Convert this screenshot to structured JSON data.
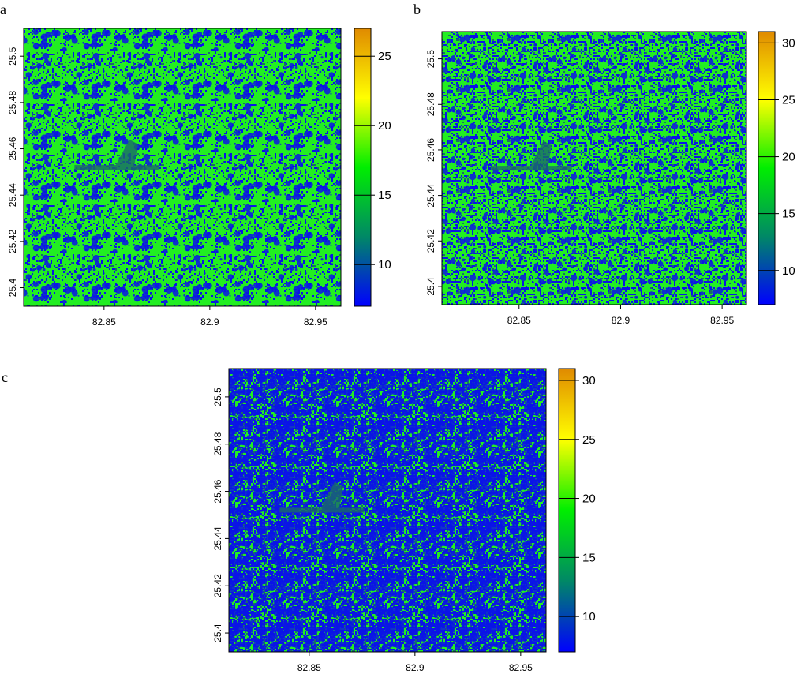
{
  "chart_data": [
    {
      "type": "heatmap",
      "panel_label": "a",
      "x_ticks": [
        82.85,
        82.9,
        82.95
      ],
      "x_tick_labels": [
        "82.85",
        "82.9",
        "82.95"
      ],
      "y_ticks": [
        25.4,
        25.42,
        25.44,
        25.46,
        25.48,
        25.5
      ],
      "y_tick_labels": [
        "25.4",
        "25.42",
        "25.44",
        "25.46",
        "25.48",
        "25.5"
      ],
      "xlim": [
        82.812,
        82.962
      ],
      "ylim": [
        25.392,
        25.512
      ],
      "colorbar": {
        "range": [
          7,
          27
        ],
        "ticks": [
          10,
          15,
          20,
          25
        ],
        "tick_labels": [
          "10",
          "15",
          "20",
          "25"
        ]
      },
      "green_fraction": 0.82,
      "grid": false
    },
    {
      "type": "heatmap",
      "panel_label": "b",
      "x_ticks": [
        82.85,
        82.9,
        82.95
      ],
      "x_tick_labels": [
        "82.85",
        "82.9",
        "82.95"
      ],
      "y_ticks": [
        25.4,
        25.42,
        25.44,
        25.46,
        25.48,
        25.5
      ],
      "y_tick_labels": [
        "25.4",
        "25.42",
        "25.44",
        "25.46",
        "25.48",
        "25.5"
      ],
      "xlim": [
        82.812,
        82.962
      ],
      "ylim": [
        25.392,
        25.512
      ],
      "colorbar": {
        "range": [
          7,
          31
        ],
        "ticks": [
          10,
          15,
          20,
          25,
          30
        ],
        "tick_labels": [
          "10",
          "15",
          "20",
          "25",
          "30"
        ]
      },
      "green_fraction": 0.72,
      "grid": false
    },
    {
      "type": "heatmap",
      "panel_label": "c",
      "x_ticks": [
        82.85,
        82.9,
        82.95
      ],
      "x_tick_labels": [
        "82.85",
        "82.9",
        "82.95"
      ],
      "y_ticks": [
        25.4,
        25.42,
        25.44,
        25.46,
        25.48,
        25.5
      ],
      "y_tick_labels": [
        "25.4",
        "25.42",
        "25.44",
        "25.46",
        "25.48",
        "25.5"
      ],
      "xlim": [
        82.812,
        82.962
      ],
      "ylim": [
        25.392,
        25.512
      ],
      "colorbar": {
        "range": [
          7,
          31
        ],
        "ticks": [
          10,
          15,
          20,
          25,
          30
        ],
        "tick_labels": [
          "10",
          "15",
          "20",
          "25",
          "30"
        ]
      },
      "green_fraction": 0.42,
      "grid": false
    }
  ],
  "colors": {
    "green": "#22ee22",
    "blue": "#0a14e6",
    "teal": "#1a6a6a",
    "colorbar_stops": [
      "#0000ff",
      "#008866",
      "#00ee00",
      "#ffff00",
      "#e08a00"
    ]
  }
}
